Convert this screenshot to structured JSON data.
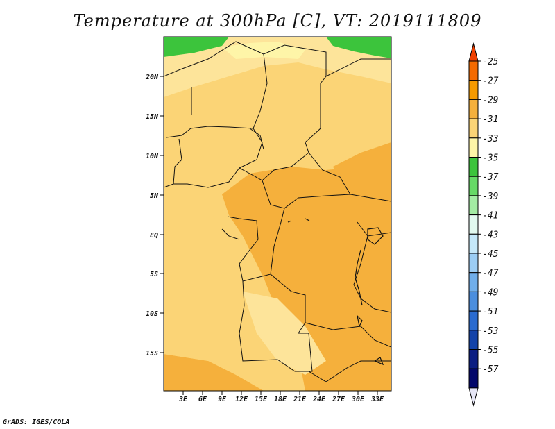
{
  "figure": {
    "title": "Temperature at 300hPa [C], VT: 2019111809",
    "footer": "GrADS: IGES/COLA"
  },
  "map": {
    "lat_labels": [
      "20N",
      "15N",
      "10N",
      "5N",
      "EQ",
      "5S",
      "10S",
      "15S"
    ],
    "lon_labels": [
      "3E",
      "6E",
      "9E",
      "12E",
      "15E",
      "18E",
      "21E",
      "24E",
      "27E",
      "30E",
      "33E"
    ]
  },
  "colorbar": {
    "labels": [
      "-25",
      "-27",
      "-29",
      "-31",
      "-33",
      "-35",
      "-37",
      "-39",
      "-41",
      "-43",
      "-45",
      "-47",
      "-49",
      "-51",
      "-53",
      "-55",
      "-57"
    ],
    "colors": [
      "#f04000",
      "#f46a00",
      "#f59a00",
      "#f5b03c",
      "#fbd476",
      "#fef5a8",
      "#3cc43c",
      "#66d966",
      "#a3eba3",
      "#e2f9ef",
      "#c5e8f9",
      "#9ccdf4",
      "#70aeea",
      "#4b8ede",
      "#2a6bd0",
      "#1343a9",
      "#0b1e82",
      "#03086b",
      "#e6e6f6"
    ]
  }
}
